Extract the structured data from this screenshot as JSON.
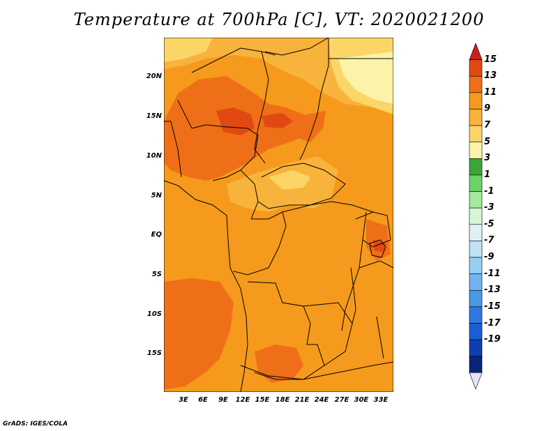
{
  "title": "Temperature at 700hPa [C], VT: 2020021200",
  "credit": "GrADS: IGES/COLA",
  "map": {
    "lat_labels": [
      "20N",
      "15N",
      "10N",
      "5N",
      "EQ",
      "5S",
      "10S",
      "15S"
    ],
    "lon_labels": [
      "3E",
      "6E",
      "9E",
      "12E",
      "15E",
      "18E",
      "21E",
      "24E",
      "27E",
      "30E",
      "33E"
    ]
  },
  "colorbar": {
    "labels": [
      "15",
      "13",
      "11",
      "9",
      "7",
      "5",
      "3",
      "1",
      "-1",
      "-3",
      "-5",
      "-7",
      "-9",
      "-11",
      "-13",
      "-15",
      "-17",
      "-19"
    ],
    "colors": [
      "#c8221a",
      "#e04a12",
      "#ef6f18",
      "#f59a1c",
      "#f8b33c",
      "#fbd667",
      "#fdf3a8",
      "#3aa838",
      "#6dd266",
      "#a3e89b",
      "#d7f6d3",
      "#dff1f7",
      "#bfe2f7",
      "#96cff3",
      "#6fb4ee",
      "#4a98e8",
      "#2d7ae0",
      "#1a5fd4",
      "#0e3fb2",
      "#08257a",
      "#e8e2f8"
    ]
  }
}
